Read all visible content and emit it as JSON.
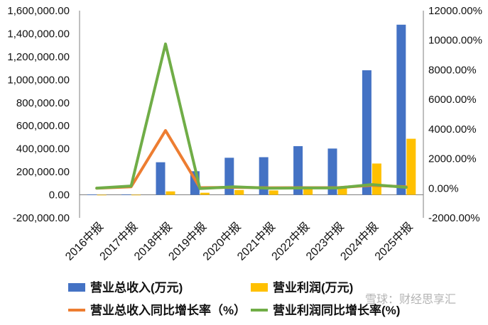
{
  "chart_data": {
    "type": "bar",
    "categories": [
      "2016中报",
      "2017中报",
      "2018中报",
      "2019中报",
      "2020中报",
      "2021中报",
      "2022中报",
      "2023中报",
      "2024中报",
      "2025中报"
    ],
    "series": [
      {
        "name": "营业总收入(万元)",
        "type": "bar",
        "axis": "left",
        "color": "#4472C4",
        "values": [
          3000,
          4000,
          283000,
          205000,
          322000,
          327000,
          423000,
          402000,
          1082000,
          1478000
        ]
      },
      {
        "name": "营业利润(万元)",
        "type": "bar",
        "axis": "left",
        "color": "#FFC000",
        "values": [
          500,
          800,
          30000,
          18000,
          42000,
          38000,
          62000,
          60000,
          272000,
          487000
        ]
      },
      {
        "name": "营业总收入同比增长率（%）",
        "type": "line",
        "axis": "right",
        "color": "#ED7D31",
        "values": [
          0,
          100,
          3900,
          40,
          60,
          30,
          40,
          40,
          200,
          100
        ]
      },
      {
        "name": "营业利润同比增长率(%)",
        "type": "line",
        "axis": "right",
        "color": "#70AD47",
        "values": [
          10,
          150,
          9750,
          -20,
          100,
          0,
          20,
          20,
          250,
          60
        ]
      }
    ],
    "y_left": {
      "min": -200000,
      "max": 1600000,
      "step": 200000,
      "tick_labels": [
        "-200,000.00",
        "0.00",
        "200,000.00",
        "400,000.00",
        "600,000.00",
        "800,000.00",
        "1,000,000.00",
        "1,200,000.00",
        "1,400,000.00",
        "1,600,000.00"
      ]
    },
    "y_right": {
      "min": -2000,
      "max": 12000,
      "step": 2000,
      "tick_labels": [
        "-2000.00%",
        "0.00%",
        "2000.00%",
        "4000.00%",
        "6000.00%",
        "8000.00%",
        "10000.00%",
        "12000.00%"
      ]
    },
    "legend_placement": "bottom",
    "grid": false,
    "watermark": "雪球：财经思享汇"
  }
}
